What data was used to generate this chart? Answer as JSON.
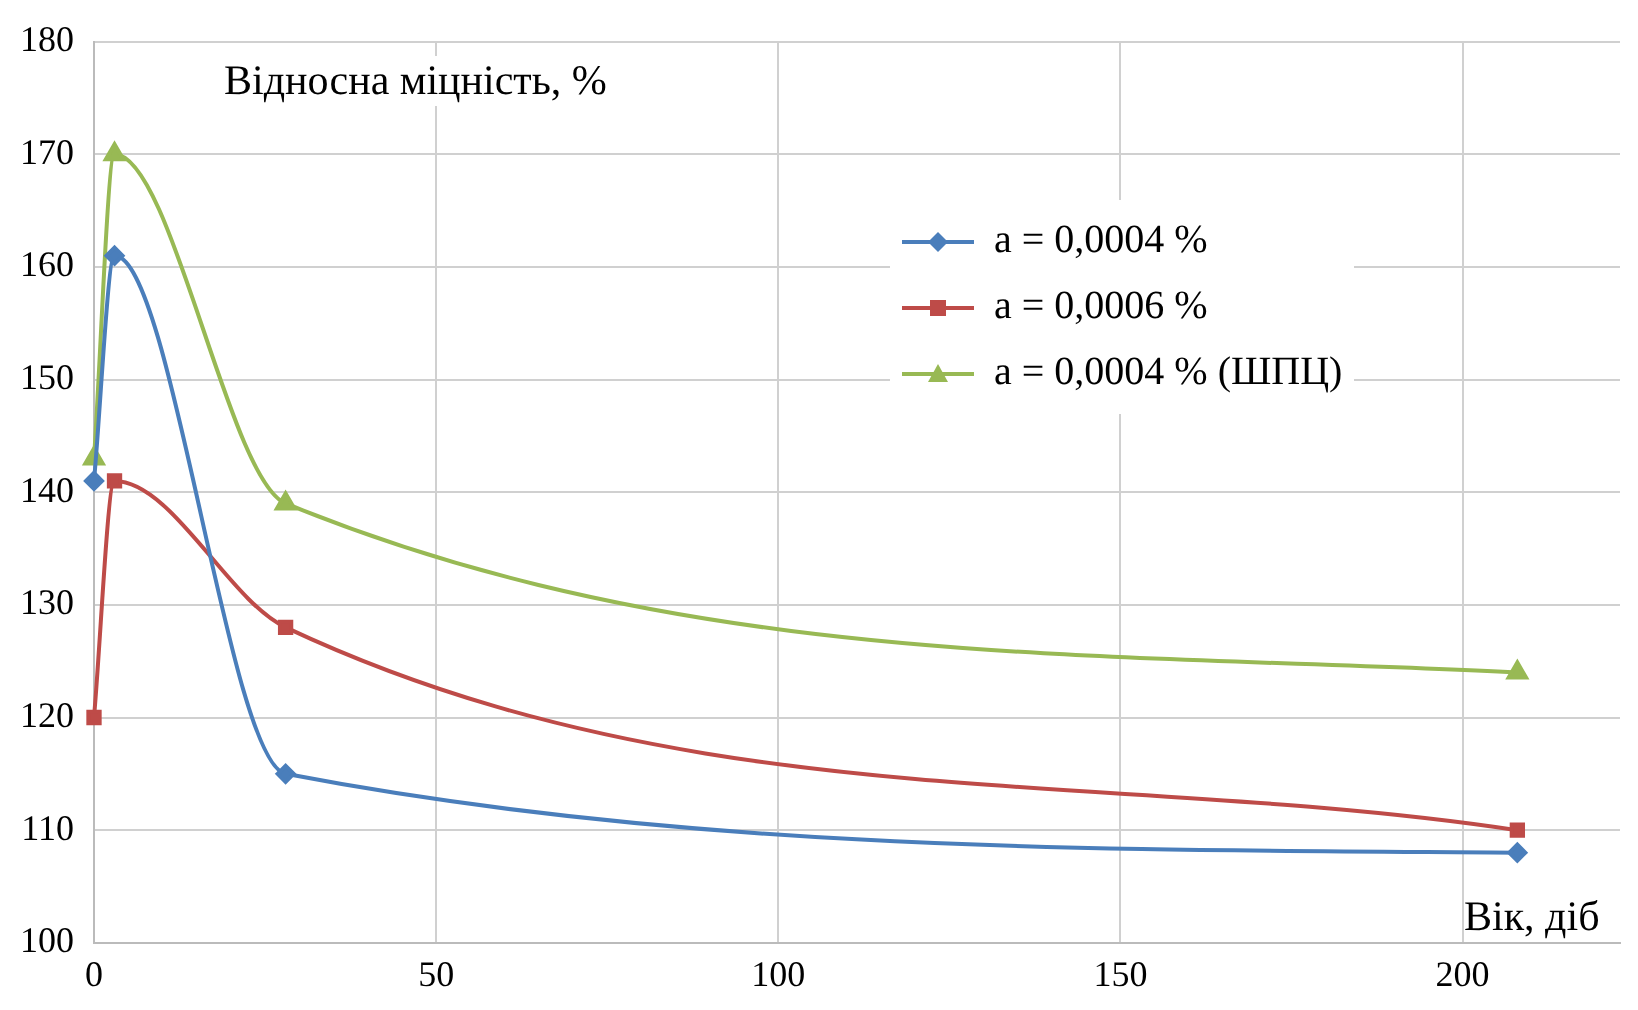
{
  "chart_data": {
    "type": "line",
    "xlabel": "Вік, діб",
    "ylabel": "Відносна міцність, %",
    "xlim": [
      0,
      223
    ],
    "xticks": [
      0,
      50,
      100,
      150,
      200
    ],
    "ylim": [
      100,
      180
    ],
    "yticks": [
      100,
      110,
      120,
      130,
      140,
      150,
      160,
      170,
      180
    ],
    "grid": true,
    "legend": "top right",
    "line_style": "solid",
    "series": [
      {
        "name": "a = 0,0004 %",
        "color": "#4a7ebb",
        "marker": "diamond",
        "x": [
          0,
          3,
          28,
          208
        ],
        "values": [
          141,
          161,
          115,
          108
        ]
      },
      {
        "name": "a = 0,0006 %",
        "color": "#be4b48",
        "marker": "square",
        "x": [
          0,
          3,
          28,
          208
        ],
        "values": [
          120,
          141,
          128,
          110
        ]
      },
      {
        "name": "a = 0,0004 % (ШПЦ)",
        "color": "#98b954",
        "marker": "triangle",
        "x": [
          0,
          3,
          28,
          208
        ],
        "values": [
          143,
          170,
          139,
          124
        ]
      }
    ]
  }
}
